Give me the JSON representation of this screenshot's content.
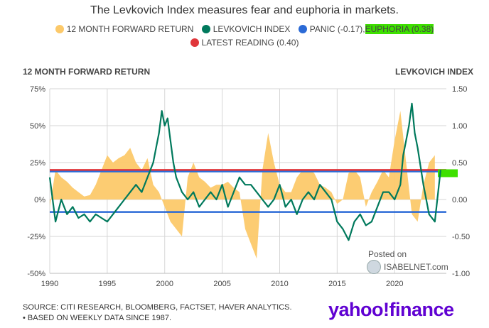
{
  "title": "The Levkovich Index measures fear and euphoria in markets.",
  "legend": {
    "fwd_return": "12 MONTH FORWARD RETURN",
    "levkovich": "LEVKOVICH INDEX",
    "panic_prefix": "PANIC (-0.17), ",
    "euphoria": "EUPHORIA (0.38)",
    "latest": "LATEST READING (0.40)"
  },
  "left_axis_title": "12 MONTH FORWARD RETURN",
  "right_axis_title": "LEVKOVICH INDEX",
  "source": "SOURCE: CITI RESEARCH, BLOOMBERG, FACTSET, HAVER ANALYTICS.",
  "note": "• BASED ON WEEKLY DATA SINCE 1987.",
  "brand": "yahoo!finance",
  "posted_on": "Posted on",
  "posted_site": "ISABELNET.com",
  "colors": {
    "forward_return": "#fcc96a",
    "levkovich": "#00795c",
    "panic": "#2b6ad6",
    "euphoria": "#2b6ad6",
    "latest": "#e0363b",
    "highlight": "#3ee000",
    "brand": "#6001d2"
  },
  "chart_data": {
    "type": "line",
    "title": "The Levkovich Index measures fear and euphoria in markets.",
    "x_ticks": [
      "1990",
      "1995",
      "2000",
      "2005",
      "2010",
      "2015",
      "2020"
    ],
    "x_range": [
      1990,
      2024.5
    ],
    "y_left": {
      "label": "12 MONTH FORWARD RETURN",
      "ticks": [
        "75%",
        "50%",
        "25%",
        "0%",
        "-25%",
        "-50%"
      ],
      "range": [
        -50,
        75
      ]
    },
    "y_right": {
      "label": "LEVKOVICH INDEX",
      "ticks": [
        "1.50",
        "1.00",
        "0.50",
        "0.00",
        "-0.50",
        "-1.00"
      ],
      "range": [
        -1.0,
        1.5
      ]
    },
    "grid": true,
    "legend_position": "top",
    "reference_lines": [
      {
        "name": "PANIC (-0.17)",
        "value": -0.17
      },
      {
        "name": "EUPHORIA (0.38)",
        "value": 0.38
      },
      {
        "name": "LATEST READING (0.40)",
        "value": 0.4
      }
    ],
    "series": [
      {
        "name": "12 MONTH FORWARD RETURN",
        "axis": "left",
        "type": "area",
        "x": [
          1990.0,
          1990.5,
          1991.0,
          1991.5,
          1992.0,
          1992.5,
          1993.0,
          1993.5,
          1994.0,
          1994.5,
          1995.0,
          1995.5,
          1996.0,
          1996.5,
          1997.0,
          1997.5,
          1998.0,
          1998.5,
          1999.0,
          1999.5,
          2000.0,
          2000.5,
          2001.0,
          2001.5,
          2002.0,
          2002.5,
          2003.0,
          2003.5,
          2004.0,
          2004.5,
          2005.0,
          2005.5,
          2006.0,
          2006.5,
          2007.0,
          2007.5,
          2008.0,
          2008.5,
          2009.0,
          2009.5,
          2010.0,
          2010.5,
          2011.0,
          2011.5,
          2012.0,
          2012.5,
          2013.0,
          2013.5,
          2014.0,
          2014.5,
          2015.0,
          2015.5,
          2016.0,
          2016.5,
          2017.0,
          2017.5,
          2018.0,
          2018.5,
          2019.0,
          2019.5,
          2020.0,
          2020.5,
          2021.0,
          2021.5,
          2022.0,
          2022.5,
          2023.0,
          2023.5
        ],
        "values": [
          -5,
          20,
          15,
          12,
          8,
          5,
          2,
          3,
          10,
          20,
          30,
          25,
          28,
          30,
          35,
          25,
          20,
          28,
          10,
          5,
          -5,
          -15,
          -20,
          -25,
          15,
          25,
          15,
          12,
          8,
          10,
          10,
          12,
          8,
          5,
          -20,
          -30,
          -40,
          20,
          45,
          25,
          10,
          5,
          5,
          15,
          20,
          20,
          18,
          10,
          8,
          5,
          -3,
          0,
          18,
          20,
          15,
          -5,
          5,
          12,
          20,
          15,
          40,
          60,
          25,
          -10,
          -15,
          10,
          25,
          30
        ]
      },
      {
        "name": "LEVKOVICH INDEX",
        "axis": "right",
        "type": "line",
        "x": [
          1990.0,
          1990.5,
          1991.0,
          1991.5,
          1992.0,
          1992.5,
          1993.0,
          1993.5,
          1994.0,
          1994.5,
          1995.0,
          1995.5,
          1996.0,
          1996.5,
          1997.0,
          1997.5,
          1998.0,
          1998.5,
          1999.0,
          1999.25,
          1999.5,
          1999.75,
          2000.0,
          2000.25,
          2000.5,
          2000.75,
          2001.0,
          2001.5,
          2002.0,
          2002.5,
          2003.0,
          2003.5,
          2004.0,
          2004.5,
          2005.0,
          2005.5,
          2006.0,
          2006.5,
          2007.0,
          2007.5,
          2008.0,
          2008.5,
          2009.0,
          2009.5,
          2010.0,
          2010.5,
          2011.0,
          2011.5,
          2012.0,
          2012.5,
          2013.0,
          2013.5,
          2014.0,
          2014.5,
          2015.0,
          2015.5,
          2016.0,
          2016.5,
          2017.0,
          2017.5,
          2018.0,
          2018.5,
          2019.0,
          2019.5,
          2020.0,
          2020.5,
          2020.75,
          2021.0,
          2021.25,
          2021.5,
          2021.75,
          2022.0,
          2022.5,
          2023.0,
          2023.5,
          2024.0
        ],
        "values": [
          0.3,
          -0.3,
          0.0,
          -0.2,
          -0.1,
          -0.25,
          -0.2,
          -0.3,
          -0.2,
          -0.25,
          -0.3,
          -0.2,
          -0.1,
          0.0,
          0.1,
          0.2,
          0.1,
          0.3,
          0.5,
          0.7,
          0.9,
          1.2,
          1.0,
          1.1,
          0.8,
          0.5,
          0.3,
          0.1,
          0.0,
          0.1,
          -0.1,
          0.0,
          0.1,
          0.0,
          0.2,
          -0.1,
          0.1,
          0.3,
          0.2,
          0.2,
          0.1,
          0.0,
          -0.1,
          0.0,
          0.2,
          -0.1,
          0.0,
          -0.2,
          0.0,
          0.1,
          0.0,
          0.2,
          0.1,
          0.0,
          -0.3,
          -0.4,
          -0.55,
          -0.3,
          -0.2,
          -0.35,
          -0.3,
          -0.1,
          0.1,
          0.1,
          0.0,
          0.2,
          0.6,
          0.8,
          1.0,
          1.3,
          0.9,
          0.7,
          0.2,
          -0.2,
          -0.3,
          0.4
        ]
      }
    ]
  }
}
